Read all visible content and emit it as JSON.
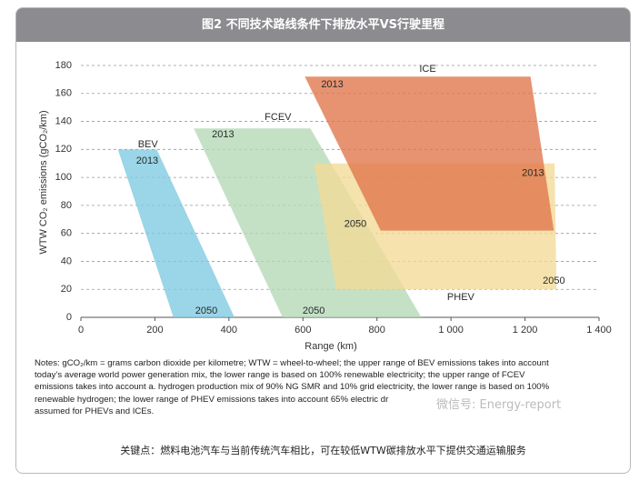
{
  "chart_data": {
    "type": "area",
    "header": "图2 不同技术路线条件下排放水平VS行驶里程",
    "x_label": "Range (km)",
    "y_label": "WTW CO₂ emissions (gCO₂/km)",
    "xlim": [
      0,
      1400
    ],
    "ylim": [
      0,
      180
    ],
    "xticks": [
      0,
      200,
      400,
      600,
      800,
      {
        "value": 1000,
        "label": "1 000"
      },
      {
        "value": 1200,
        "label": "1 200"
      },
      {
        "value": 1400,
        "label": "1 400"
      }
    ],
    "yticks": [
      0,
      20,
      40,
      60,
      80,
      100,
      120,
      140,
      160,
      180
    ],
    "grid": true,
    "series": [
      {
        "name": "BEV",
        "color": "#7ec9e1",
        "annotations": [
          "2013",
          "2050"
        ],
        "x": [
          100,
          205,
          415,
          250
        ],
        "y": [
          120,
          120,
          0,
          0
        ]
      },
      {
        "name": "FCEV",
        "color": "#b3d8b6",
        "annotations": [
          "2013",
          "2050"
        ],
        "x": [
          305,
          620,
          920,
          545
        ],
        "y": [
          135,
          135,
          0,
          0
        ]
      },
      {
        "name": "PHEV",
        "color": "#f2da96",
        "annotations": [
          "2013",
          "2050"
        ],
        "x": [
          630,
          1280,
          1285,
          690
        ],
        "y": [
          110,
          110,
          20,
          20
        ]
      },
      {
        "name": "ICE",
        "color": "#e0754a",
        "annotations": [
          "2013",
          "2050"
        ],
        "x": [
          605,
          1215,
          1278,
          810
        ],
        "y": [
          172,
          172,
          62,
          62
        ]
      }
    ],
    "notes": [
      "Notes: gCO₂/km = grams carbon dioxide per kilometre; WTW = wheel-to-wheel; the upper range of BEV emissions takes into account",
      "today’s average world power generation mix, the lower range is based on 100% renewable electricity; the upper range of FCEV",
      "emissions takes into account a. hydrogen production mix of 90% NG SMR and 10% grid electricity, the lower range is based on 100%",
      "renewable hydrogen; the lower range of PHEV emissions takes into account 65% electric dr",
      "assumed for PHEVs and ICEs."
    ],
    "watermark": "微信号: Energy-report",
    "caption": "关键点：燃料电池汽车与当前传统汽车相比，可在较低WTW碳排放水平下提供交通运输服务"
  }
}
